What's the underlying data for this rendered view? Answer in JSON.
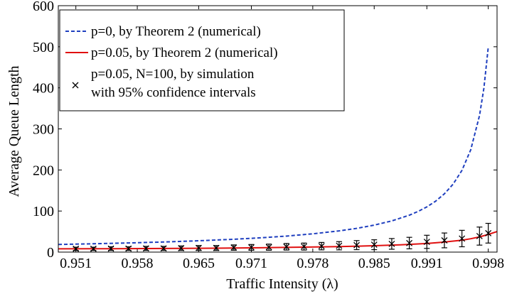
{
  "chart_data": {
    "type": "line",
    "title": "",
    "xlabel": "Traffic Intensity (λ)",
    "ylabel": "Average Queue Length",
    "xlim": [
      0.949,
      0.999
    ],
    "ylim": [
      0,
      600
    ],
    "x_ticks": [
      0.951,
      0.958,
      0.965,
      0.971,
      0.978,
      0.985,
      0.991,
      0.998
    ],
    "x_tick_labels": [
      "0.951",
      "0.958",
      "0.965",
      "0.971",
      "0.978",
      "0.985",
      "0.991",
      "0.998"
    ],
    "y_ticks": [
      0,
      100,
      200,
      300,
      400,
      500,
      600
    ],
    "y_tick_labels": [
      "0",
      "100",
      "200",
      "300",
      "400",
      "500",
      "600"
    ],
    "grid": false,
    "legend_position": "top-left",
    "series": [
      {
        "name": "p=0, by Theorem 2 (numerical)",
        "style": "dashed",
        "color": "#1f3fbf",
        "x": [
          0.949,
          0.953,
          0.957,
          0.961,
          0.965,
          0.969,
          0.972,
          0.975,
          0.978,
          0.981,
          0.983,
          0.985,
          0.987,
          0.989,
          0.99,
          0.991,
          0.992,
          0.993,
          0.994,
          0.995,
          0.996,
          0.997,
          0.9975,
          0.998
        ],
        "values": [
          18.6,
          20.3,
          22.3,
          24.6,
          27.6,
          31.3,
          34.7,
          39.0,
          44.5,
          51.6,
          57.8,
          65.7,
          75.9,
          89.9,
          99.0,
          110.1,
          124.0,
          141.9,
          165.7,
          199.0,
          249.0,
          332.3,
          399.0,
          499.0
        ]
      },
      {
        "name": "p=0.05, by Theorem 2 (numerical)",
        "style": "solid",
        "color": "#e01010",
        "x": [
          0.949,
          0.955,
          0.961,
          0.967,
          0.972,
          0.977,
          0.981,
          0.985,
          0.988,
          0.991,
          0.993,
          0.995,
          0.996,
          0.997,
          0.998,
          0.999
        ],
        "values": [
          8,
          8.3,
          8.8,
          9.6,
          10.6,
          12.0,
          13.5,
          15.5,
          17.8,
          21.0,
          24.5,
          29.0,
          32.5,
          37.0,
          43.0,
          50.0
        ]
      },
      {
        "name": "p=0.05, N=100, by simulation",
        "name_line2": "with 95% confidence intervals",
        "style": "markers-with-errorbars",
        "color": "#000000",
        "marker": "x",
        "x": [
          0.951,
          0.953,
          0.955,
          0.957,
          0.959,
          0.961,
          0.963,
          0.965,
          0.967,
          0.969,
          0.971,
          0.973,
          0.975,
          0.977,
          0.979,
          0.981,
          0.983,
          0.985,
          0.987,
          0.989,
          0.991,
          0.993,
          0.995,
          0.997,
          0.998
        ],
        "values": [
          8,
          8,
          8.5,
          8.5,
          9,
          9,
          9.5,
          10,
          10,
          11,
          11.5,
          12,
          13,
          13.5,
          14.5,
          15.5,
          17,
          18,
          20,
          22,
          25,
          28.5,
          33,
          39,
          46
        ],
        "err": [
          4,
          4,
          4.5,
          4.5,
          5,
          5,
          5.5,
          6,
          6,
          6.5,
          7,
          7.5,
          8,
          8.5,
          9,
          10,
          11,
          12,
          13,
          14,
          16,
          18,
          20,
          22,
          24
        ]
      }
    ]
  }
}
